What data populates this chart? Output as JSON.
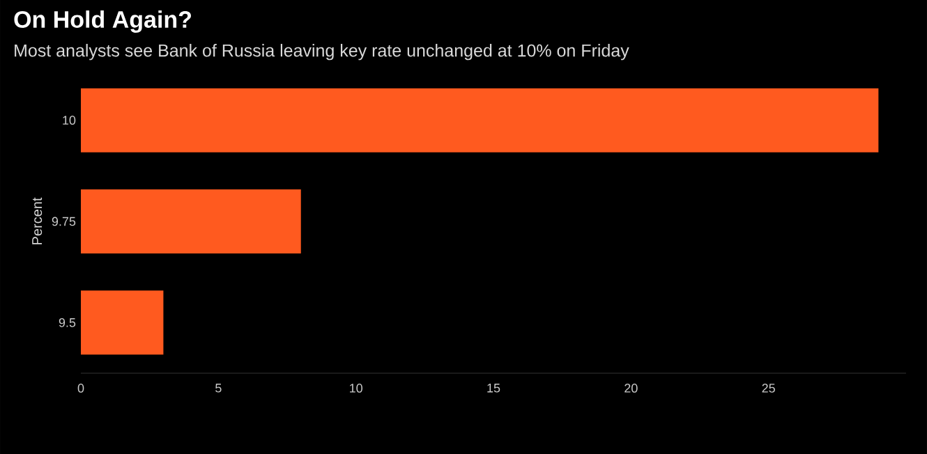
{
  "chart_data": {
    "type": "bar",
    "orientation": "horizontal",
    "title": "On Hold Again?",
    "subtitle": "Most analysts see Bank of Russia leaving key rate unchanged at 10% on Friday",
    "ylabel": "Percent",
    "categories": [
      "10",
      "9.75",
      "9.5"
    ],
    "values": [
      29,
      8,
      3
    ],
    "color": "#ff5a1f",
    "xlim": [
      0,
      30
    ],
    "xticks": [
      0,
      5,
      10,
      15,
      20,
      25
    ]
  }
}
